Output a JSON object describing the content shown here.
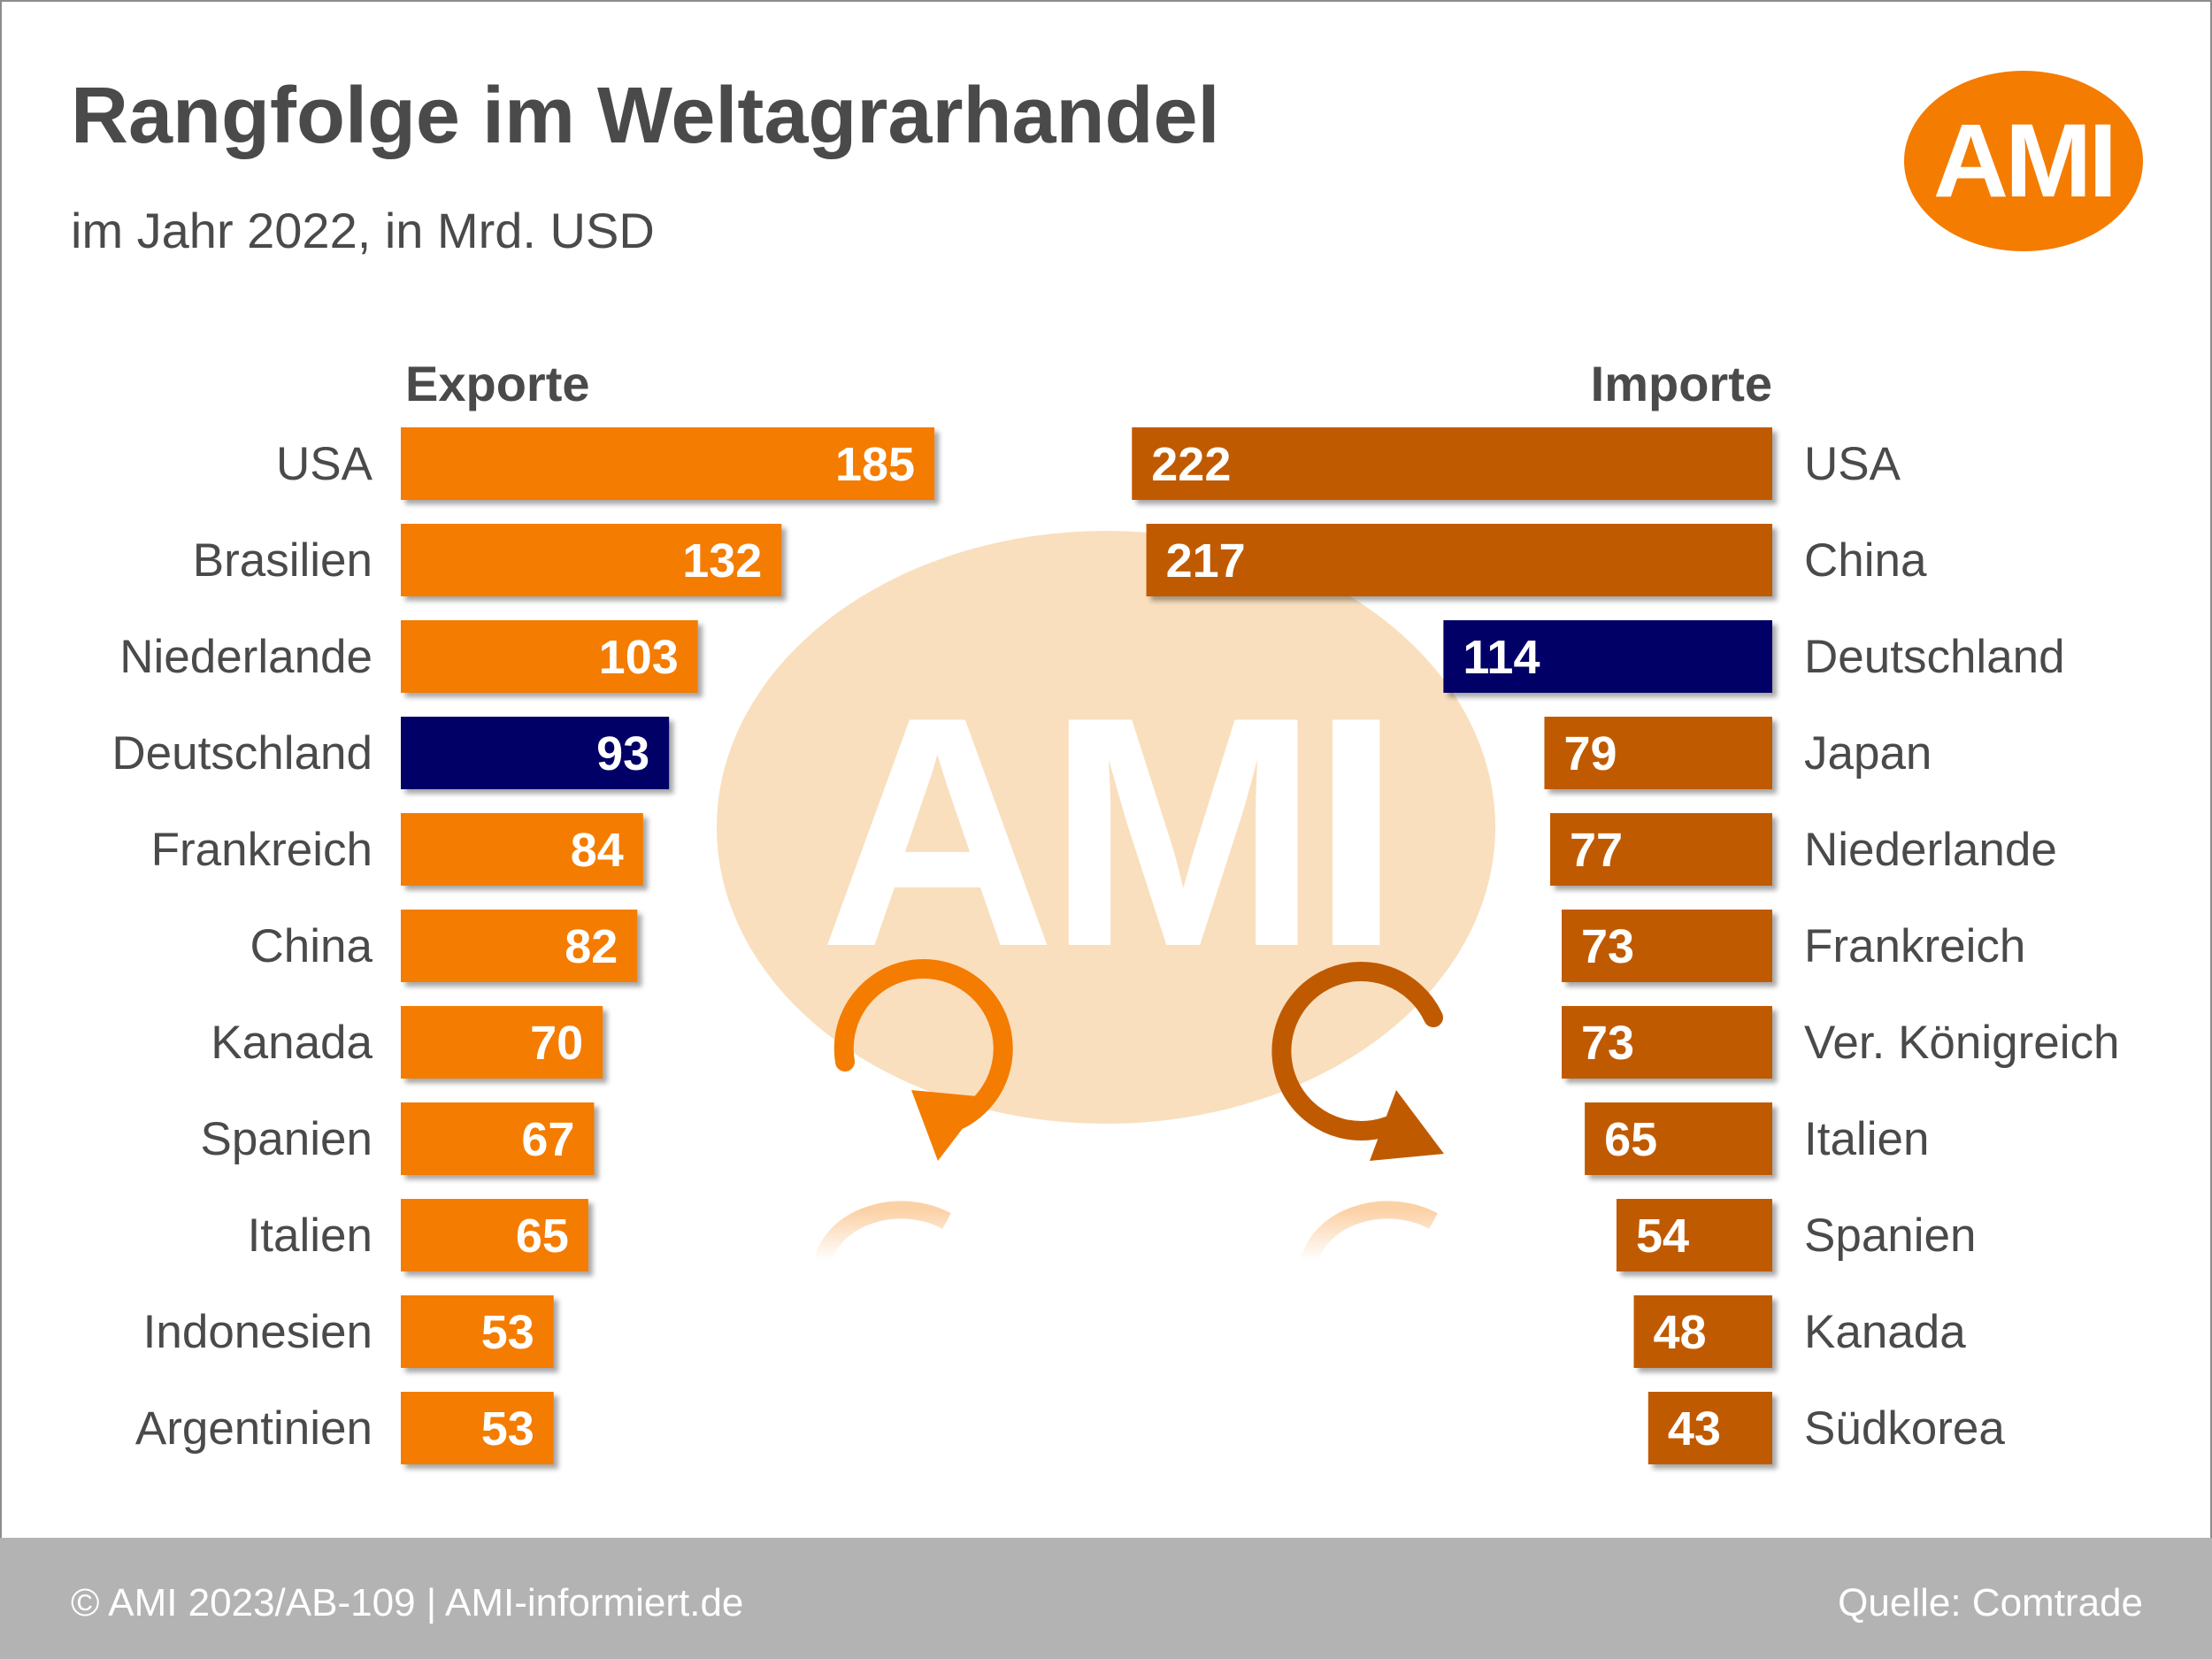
{
  "title": "Rangfolge im Weltagrarhandel",
  "subtitle": "im Jahr 2022, in Mrd. USD",
  "logo_text": "AMI",
  "watermark_text": "AMI",
  "footer": {
    "left": "© AMI 2023/AB-109 | AMI-informiert.de",
    "right": "Quelle: Comtrade"
  },
  "colors": {
    "export_bar": "#f47c00",
    "import_bar": "#c05a00",
    "highlight": "#000066",
    "watermark": "#f9dfbd",
    "label_text": "#4a4a4a"
  },
  "chart_data": [
    {
      "type": "bar",
      "orientation": "horizontal",
      "title": "Exporte",
      "categories": [
        "USA",
        "Brasilien",
        "Niederlande",
        "Deutschland",
        "Frankreich",
        "China",
        "Kanada",
        "Spanien",
        "Italien",
        "Indonesien",
        "Argentinien"
      ],
      "values": [
        185,
        132,
        103,
        93,
        84,
        82,
        70,
        67,
        65,
        53,
        53
      ],
      "highlight": "Deutschland"
    },
    {
      "type": "bar",
      "orientation": "horizontal",
      "title": "Importe",
      "categories": [
        "USA",
        "China",
        "Deutschland",
        "Japan",
        "Niederlande",
        "Frankreich",
        "Ver. Königreich",
        "Italien",
        "Spanien",
        "Kanada",
        "Südkorea"
      ],
      "values": [
        222,
        217,
        114,
        79,
        77,
        73,
        73,
        65,
        54,
        48,
        43
      ],
      "highlight": "Deutschland"
    }
  ]
}
